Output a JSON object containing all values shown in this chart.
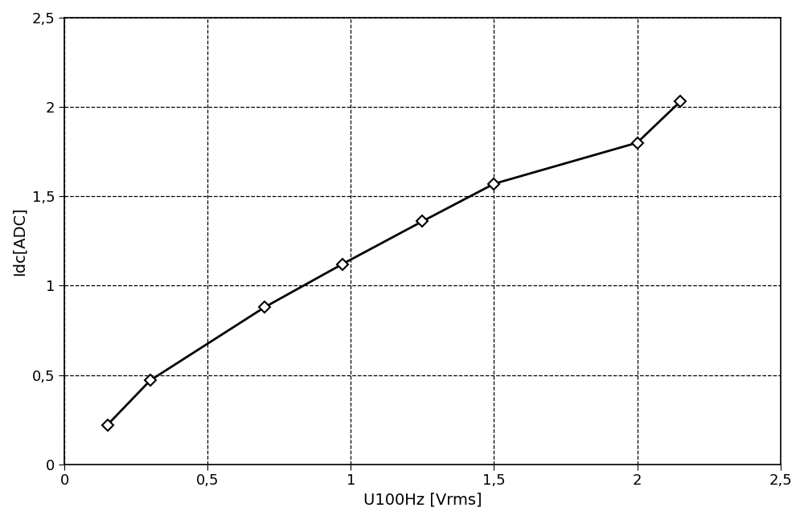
{
  "x": [
    0.15,
    0.3,
    0.7,
    0.97,
    1.25,
    1.5,
    2.0,
    2.15
  ],
  "y": [
    0.22,
    0.47,
    0.88,
    1.12,
    1.36,
    1.57,
    1.8,
    2.03
  ],
  "xlabel": "U100Hz [Vrms]",
  "ylabel": "Idc[ADC]",
  "xlim": [
    0,
    2.5
  ],
  "ylim": [
    0,
    2.5
  ],
  "xticks": [
    0,
    0.5,
    1.0,
    1.5,
    2.0,
    2.5
  ],
  "yticks": [
    0,
    0.5,
    1.0,
    1.5,
    2.0,
    2.5
  ],
  "xtick_labels": [
    "0",
    "0,5",
    "1",
    "1,5",
    "2",
    "2,5"
  ],
  "ytick_labels": [
    "0",
    "0,5",
    "1",
    "1,5",
    "2",
    "2,5"
  ],
  "line_color": "#000000",
  "marker": "D",
  "marker_size": 7,
  "marker_facecolor": "#ffffff",
  "marker_edgecolor": "#000000",
  "line_width": 2.0,
  "grid_color": "#000000",
  "grid_linestyle": "--",
  "grid_linewidth": 0.9,
  "background_color": "#ffffff",
  "font_size_labels": 14,
  "font_size_ticks": 13
}
